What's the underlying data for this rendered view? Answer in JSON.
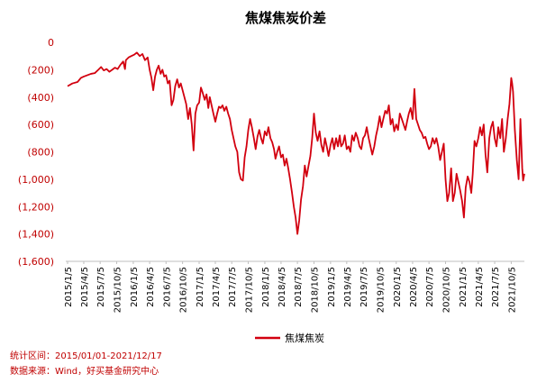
{
  "colors": {
    "series": "#d2000f",
    "tick_text": "#c00000",
    "note_text": "#c00000",
    "axis": "#bfbfbf"
  },
  "notes": {
    "range": "统计区间：2015/01/01-2021/12/17",
    "source": "数据来源：Wind，好买基金研究中心"
  },
  "chart_data": {
    "type": "line",
    "title": "焦煤焦炭价差",
    "xlabel": "",
    "ylabel": "",
    "xlim": [
      "2015-01-05",
      "2021-12-17"
    ],
    "ylim": [
      -1600,
      0
    ],
    "yticks": [
      0,
      -200,
      -400,
      -600,
      -800,
      -1000,
      -1200,
      -1400,
      -1600
    ],
    "ytick_labels": [
      "0",
      "(200)",
      "(400)",
      "(600)",
      "(800)",
      "(1,000)",
      "(1,200)",
      "(1,400)",
      "(1,600)"
    ],
    "xticks": [
      "2015-01-05",
      "2015-04-05",
      "2015-07-05",
      "2015-10-05",
      "2016-01-05",
      "2016-04-05",
      "2016-07-05",
      "2016-10-05",
      "2017-01-05",
      "2017-04-05",
      "2017-07-05",
      "2017-10-05",
      "2018-01-05",
      "2018-04-05",
      "2018-07-05",
      "2018-10-05",
      "2019-01-05",
      "2019-04-05",
      "2019-07-05",
      "2019-10-05",
      "2020-01-05",
      "2020-04-05",
      "2020-07-05",
      "2020-10-05",
      "2021-01-05",
      "2021-04-05",
      "2021-07-05",
      "2021-10-05"
    ],
    "xtick_labels": [
      "2015/1/5",
      "2015/4/5",
      "2015/7/5",
      "2015/10/5",
      "2016/1/5",
      "2016/4/5",
      "2016/7/5",
      "2016/10/5",
      "2017/1/5",
      "2017/4/5",
      "2017/7/5",
      "2017/10/5",
      "2018/1/5",
      "2018/4/5",
      "2018/7/5",
      "2018/10/5",
      "2019/1/5",
      "2019/4/5",
      "2019/7/5",
      "2019/10/5",
      "2020/1/5",
      "2020/4/5",
      "2020/7/5",
      "2020/10/5",
      "2021/1/5",
      "2021/4/5",
      "2021/7/5",
      "2021/10/5"
    ],
    "legend": "bottom-center",
    "grid": false,
    "series": [
      {
        "name": "焦煤焦炭",
        "points": [
          [
            "2015-01-05",
            -320
          ],
          [
            "2015-02-01",
            -300
          ],
          [
            "2015-03-01",
            -290
          ],
          [
            "2015-03-20",
            -260
          ],
          [
            "2015-04-05",
            -250
          ],
          [
            "2015-04-25",
            -240
          ],
          [
            "2015-05-15",
            -230
          ],
          [
            "2015-06-05",
            -225
          ],
          [
            "2015-06-25",
            -200
          ],
          [
            "2015-07-10",
            -180
          ],
          [
            "2015-07-25",
            -205
          ],
          [
            "2015-08-10",
            -195
          ],
          [
            "2015-08-25",
            -215
          ],
          [
            "2015-09-10",
            -200
          ],
          [
            "2015-09-25",
            -185
          ],
          [
            "2015-10-10",
            -195
          ],
          [
            "2015-10-25",
            -165
          ],
          [
            "2015-11-10",
            -140
          ],
          [
            "2015-11-20",
            -195
          ],
          [
            "2015-11-25",
            -130
          ],
          [
            "2015-12-10",
            -110
          ],
          [
            "2015-12-25",
            -100
          ],
          [
            "2016-01-10",
            -90
          ],
          [
            "2016-01-25",
            -75
          ],
          [
            "2016-02-10",
            -100
          ],
          [
            "2016-02-25",
            -85
          ],
          [
            "2016-03-10",
            -130
          ],
          [
            "2016-03-25",
            -110
          ],
          [
            "2016-04-05",
            -200
          ],
          [
            "2016-04-15",
            -260
          ],
          [
            "2016-04-25",
            -350
          ],
          [
            "2016-05-05",
            -250
          ],
          [
            "2016-05-15",
            -200
          ],
          [
            "2016-05-25",
            -170
          ],
          [
            "2016-06-05",
            -230
          ],
          [
            "2016-06-15",
            -200
          ],
          [
            "2016-06-25",
            -250
          ],
          [
            "2016-07-05",
            -240
          ],
          [
            "2016-07-15",
            -300
          ],
          [
            "2016-07-25",
            -280
          ],
          [
            "2016-08-05",
            -460
          ],
          [
            "2016-08-15",
            -420
          ],
          [
            "2016-08-25",
            -320
          ],
          [
            "2016-09-05",
            -270
          ],
          [
            "2016-09-15",
            -330
          ],
          [
            "2016-09-25",
            -300
          ],
          [
            "2016-10-05",
            -350
          ],
          [
            "2016-10-15",
            -400
          ],
          [
            "2016-10-25",
            -450
          ],
          [
            "2016-11-05",
            -560
          ],
          [
            "2016-11-15",
            -480
          ],
          [
            "2016-11-25",
            -600
          ],
          [
            "2016-12-05",
            -790
          ],
          [
            "2016-12-15",
            -520
          ],
          [
            "2016-12-25",
            -460
          ],
          [
            "2017-01-05",
            -440
          ],
          [
            "2017-01-15",
            -330
          ],
          [
            "2017-01-25",
            -370
          ],
          [
            "2017-02-05",
            -420
          ],
          [
            "2017-02-15",
            -380
          ],
          [
            "2017-02-25",
            -480
          ],
          [
            "2017-03-05",
            -400
          ],
          [
            "2017-03-15",
            -460
          ],
          [
            "2017-03-25",
            -520
          ],
          [
            "2017-04-05",
            -580
          ],
          [
            "2017-04-15",
            -520
          ],
          [
            "2017-04-25",
            -470
          ],
          [
            "2017-05-05",
            -480
          ],
          [
            "2017-05-15",
            -460
          ],
          [
            "2017-05-25",
            -500
          ],
          [
            "2017-06-05",
            -470
          ],
          [
            "2017-06-15",
            -520
          ],
          [
            "2017-06-25",
            -560
          ],
          [
            "2017-07-05",
            -640
          ],
          [
            "2017-07-15",
            -700
          ],
          [
            "2017-07-25",
            -760
          ],
          [
            "2017-08-05",
            -800
          ],
          [
            "2017-08-15",
            -950
          ],
          [
            "2017-08-25",
            -1000
          ],
          [
            "2017-09-05",
            -1010
          ],
          [
            "2017-09-15",
            -840
          ],
          [
            "2017-09-25",
            -760
          ],
          [
            "2017-10-05",
            -640
          ],
          [
            "2017-10-15",
            -560
          ],
          [
            "2017-10-25",
            -620
          ],
          [
            "2017-11-05",
            -700
          ],
          [
            "2017-11-15",
            -780
          ],
          [
            "2017-11-25",
            -690
          ],
          [
            "2017-12-05",
            -640
          ],
          [
            "2017-12-15",
            -700
          ],
          [
            "2017-12-25",
            -740
          ],
          [
            "2018-01-05",
            -650
          ],
          [
            "2018-01-15",
            -680
          ],
          [
            "2018-01-25",
            -620
          ],
          [
            "2018-02-05",
            -700
          ],
          [
            "2018-02-15",
            -730
          ],
          [
            "2018-02-25",
            -780
          ],
          [
            "2018-03-05",
            -850
          ],
          [
            "2018-03-15",
            -800
          ],
          [
            "2018-03-25",
            -760
          ],
          [
            "2018-04-05",
            -840
          ],
          [
            "2018-04-15",
            -820
          ],
          [
            "2018-04-25",
            -900
          ],
          [
            "2018-05-05",
            -850
          ],
          [
            "2018-05-15",
            -920
          ],
          [
            "2018-05-25",
            -1000
          ],
          [
            "2018-06-05",
            -1100
          ],
          [
            "2018-06-15",
            -1200
          ],
          [
            "2018-06-25",
            -1280
          ],
          [
            "2018-07-05",
            -1400
          ],
          [
            "2018-07-15",
            -1300
          ],
          [
            "2018-07-25",
            -1150
          ],
          [
            "2018-08-05",
            -1050
          ],
          [
            "2018-08-15",
            -900
          ],
          [
            "2018-08-25",
            -980
          ],
          [
            "2018-09-05",
            -900
          ],
          [
            "2018-09-15",
            -830
          ],
          [
            "2018-09-25",
            -700
          ],
          [
            "2018-10-05",
            -520
          ],
          [
            "2018-10-15",
            -660
          ],
          [
            "2018-10-25",
            -720
          ],
          [
            "2018-11-05",
            -650
          ],
          [
            "2018-11-15",
            -750
          ],
          [
            "2018-11-25",
            -800
          ],
          [
            "2018-12-05",
            -700
          ],
          [
            "2018-12-15",
            -760
          ],
          [
            "2018-12-25",
            -830
          ],
          [
            "2019-01-05",
            -750
          ],
          [
            "2019-01-15",
            -700
          ],
          [
            "2019-01-25",
            -780
          ],
          [
            "2019-02-05",
            -700
          ],
          [
            "2019-02-15",
            -760
          ],
          [
            "2019-02-25",
            -680
          ],
          [
            "2019-03-05",
            -760
          ],
          [
            "2019-03-15",
            -740
          ],
          [
            "2019-03-25",
            -680
          ],
          [
            "2019-04-05",
            -780
          ],
          [
            "2019-04-15",
            -760
          ],
          [
            "2019-04-25",
            -800
          ],
          [
            "2019-05-05",
            -680
          ],
          [
            "2019-05-15",
            -720
          ],
          [
            "2019-05-25",
            -660
          ],
          [
            "2019-06-05",
            -700
          ],
          [
            "2019-06-15",
            -760
          ],
          [
            "2019-06-25",
            -780
          ],
          [
            "2019-07-05",
            -700
          ],
          [
            "2019-07-15",
            -680
          ],
          [
            "2019-07-25",
            -620
          ],
          [
            "2019-08-05",
            -700
          ],
          [
            "2019-08-15",
            -760
          ],
          [
            "2019-08-25",
            -820
          ],
          [
            "2019-09-05",
            -760
          ],
          [
            "2019-09-15",
            -680
          ],
          [
            "2019-09-25",
            -620
          ],
          [
            "2019-10-05",
            -540
          ],
          [
            "2019-10-15",
            -620
          ],
          [
            "2019-10-25",
            -560
          ],
          [
            "2019-11-05",
            -500
          ],
          [
            "2019-11-15",
            -520
          ],
          [
            "2019-11-25",
            -460
          ],
          [
            "2019-12-05",
            -600
          ],
          [
            "2019-12-15",
            -560
          ],
          [
            "2019-12-25",
            -650
          ],
          [
            "2020-01-05",
            -600
          ],
          [
            "2020-01-15",
            -640
          ],
          [
            "2020-01-25",
            -520
          ],
          [
            "2020-02-05",
            -560
          ],
          [
            "2020-02-15",
            -600
          ],
          [
            "2020-02-25",
            -640
          ],
          [
            "2020-03-05",
            -580
          ],
          [
            "2020-03-15",
            -520
          ],
          [
            "2020-03-25",
            -480
          ],
          [
            "2020-04-05",
            -560
          ],
          [
            "2020-04-15",
            -340
          ],
          [
            "2020-04-25",
            -560
          ],
          [
            "2020-05-05",
            -600
          ],
          [
            "2020-05-15",
            -640
          ],
          [
            "2020-05-25",
            -660
          ],
          [
            "2020-06-05",
            -700
          ],
          [
            "2020-06-15",
            -690
          ],
          [
            "2020-06-25",
            -740
          ],
          [
            "2020-07-05",
            -780
          ],
          [
            "2020-07-15",
            -760
          ],
          [
            "2020-07-25",
            -700
          ],
          [
            "2020-08-05",
            -740
          ],
          [
            "2020-08-15",
            -700
          ],
          [
            "2020-08-25",
            -760
          ],
          [
            "2020-09-05",
            -860
          ],
          [
            "2020-09-15",
            -800
          ],
          [
            "2020-09-25",
            -740
          ],
          [
            "2020-10-05",
            -1000
          ],
          [
            "2020-10-15",
            -1160
          ],
          [
            "2020-10-25",
            -1100
          ],
          [
            "2020-11-05",
            -920
          ],
          [
            "2020-11-15",
            -1160
          ],
          [
            "2020-11-25",
            -1100
          ],
          [
            "2020-12-05",
            -960
          ],
          [
            "2020-12-15",
            -1020
          ],
          [
            "2020-12-25",
            -1080
          ],
          [
            "2021-01-05",
            -1160
          ],
          [
            "2021-01-15",
            -1280
          ],
          [
            "2021-01-25",
            -1060
          ],
          [
            "2021-02-05",
            -980
          ],
          [
            "2021-02-15",
            -1020
          ],
          [
            "2021-02-25",
            -1100
          ],
          [
            "2021-03-05",
            -960
          ],
          [
            "2021-03-15",
            -720
          ],
          [
            "2021-03-25",
            -760
          ],
          [
            "2021-04-05",
            -700
          ],
          [
            "2021-04-15",
            -620
          ],
          [
            "2021-04-25",
            -680
          ],
          [
            "2021-05-05",
            -600
          ],
          [
            "2021-05-15",
            -820
          ],
          [
            "2021-05-25",
            -950
          ],
          [
            "2021-06-05",
            -700
          ],
          [
            "2021-06-15",
            -620
          ],
          [
            "2021-06-25",
            -580
          ],
          [
            "2021-07-05",
            -700
          ],
          [
            "2021-07-15",
            -760
          ],
          [
            "2021-07-25",
            -620
          ],
          [
            "2021-08-05",
            -700
          ],
          [
            "2021-08-15",
            -560
          ],
          [
            "2021-08-25",
            -800
          ],
          [
            "2021-09-05",
            -700
          ],
          [
            "2021-09-15",
            -560
          ],
          [
            "2021-09-25",
            -450
          ],
          [
            "2021-10-05",
            -260
          ],
          [
            "2021-10-10",
            -300
          ],
          [
            "2021-10-15",
            -360
          ],
          [
            "2021-10-25",
            -640
          ],
          [
            "2021-11-05",
            -860
          ],
          [
            "2021-11-15",
            -1000
          ],
          [
            "2021-11-25",
            -560
          ],
          [
            "2021-12-05",
            -920
          ],
          [
            "2021-12-10",
            -1010
          ],
          [
            "2021-12-17",
            -960
          ]
        ]
      }
    ]
  }
}
